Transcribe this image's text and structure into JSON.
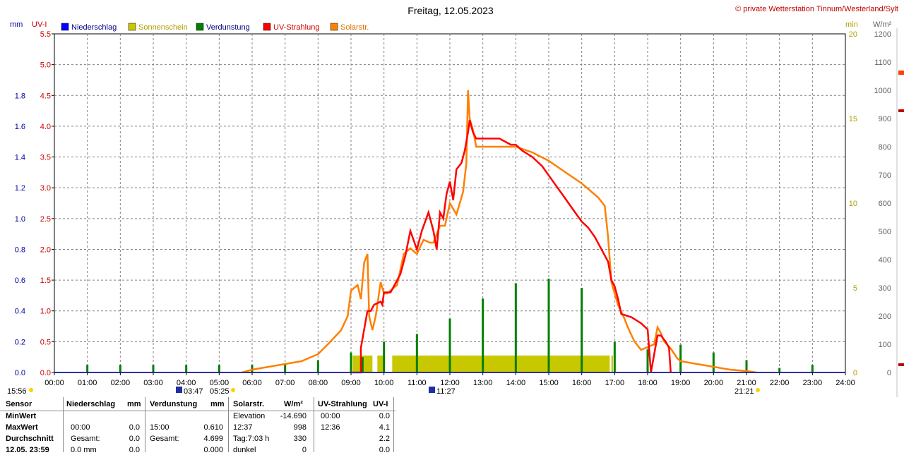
{
  "chart_data": {
    "type": "line",
    "title": "Freitag, 12.05.2023",
    "copyright": "© private Wetterstation Tinnum/Westerland/Sylt",
    "x_ticks": [
      "00:00",
      "01:00",
      "02:00",
      "03:00",
      "04:00",
      "05:00",
      "06:00",
      "07:00",
      "08:00",
      "09:00",
      "10:00",
      "11:00",
      "12:00",
      "13:00",
      "14:00",
      "15:00",
      "16:00",
      "17:00",
      "18:00",
      "19:00",
      "20:00",
      "21:00",
      "22:00",
      "23:00",
      "24:00"
    ],
    "xlim": [
      0,
      24
    ],
    "axes": {
      "mm": {
        "label": "mm",
        "ylim": [
          0,
          2.2
        ],
        "ticks": [
          "0.0",
          "0.2",
          "0.4",
          "0.6",
          "0.8",
          "1.0",
          "1.2",
          "1.4",
          "1.6",
          "1.8"
        ],
        "color": "#0000a0"
      },
      "uvi": {
        "label": "UV-I",
        "ylim": [
          0,
          5.5
        ],
        "ticks": [
          "0.0",
          "0.5",
          "1.0",
          "1.5",
          "2.0",
          "2.5",
          "3.0",
          "3.5",
          "4.0",
          "4.5",
          "5.0",
          "5.5"
        ],
        "color": "#d00000"
      },
      "min": {
        "label": "min",
        "ylim": [
          0,
          20
        ],
        "ticks": [
          "0",
          "5",
          "10",
          "15",
          "20"
        ],
        "color": "#b0a000"
      },
      "wm2": {
        "label": "W/m²",
        "ylim": [
          0,
          1200
        ],
        "ticks": [
          "0",
          "100",
          "200",
          "300",
          "400",
          "500",
          "600",
          "700",
          "800",
          "900",
          "1000",
          "1100",
          "1200"
        ],
        "color": "#606060"
      }
    },
    "legend": [
      {
        "name": "Niederschlag",
        "color": "#0000ff",
        "text_color": "#000080"
      },
      {
        "name": "Sonnenschein",
        "color": "#c8c800",
        "text_color": "#b0a000"
      },
      {
        "name": "Verdunstung",
        "color": "#008000",
        "text_color": "#000080"
      },
      {
        "name": "UV-Strahlung",
        "color": "#ff0000",
        "text_color": "#d00000"
      },
      {
        "name": "Solarstr.",
        "color": "#ff8000",
        "text_color": "#e07000"
      }
    ],
    "sunshine_blocks": [
      [
        9.05,
        9.65
      ],
      [
        9.8,
        9.98
      ],
      [
        10.25,
        16.85
      ],
      [
        16.9,
        16.95
      ]
    ],
    "sunshine_level_min": 1,
    "evaporation_spikes": [
      [
        1,
        0.05
      ],
      [
        2,
        0.05
      ],
      [
        3,
        0.05
      ],
      [
        4,
        0.05
      ],
      [
        5,
        0.05
      ],
      [
        6,
        0.05
      ],
      [
        7,
        0.05
      ],
      [
        8,
        0.08
      ],
      [
        9,
        0.13
      ],
      [
        9.35,
        0.1
      ],
      [
        10,
        0.2
      ],
      [
        11,
        0.25
      ],
      [
        12,
        0.35
      ],
      [
        13,
        0.48
      ],
      [
        14,
        0.58
      ],
      [
        15,
        0.61
      ],
      [
        16,
        0.55
      ],
      [
        17,
        0.2
      ],
      [
        18,
        0.15
      ],
      [
        19,
        0.18
      ],
      [
        20,
        0.13
      ],
      [
        21,
        0.08
      ],
      [
        22,
        0.03
      ],
      [
        23,
        0.05
      ]
    ],
    "solar_wm2": [
      [
        5.7,
        0
      ],
      [
        6,
        10
      ],
      [
        6.5,
        20
      ],
      [
        7,
        30
      ],
      [
        7.5,
        40
      ],
      [
        8,
        65
      ],
      [
        8.3,
        100
      ],
      [
        8.7,
        150
      ],
      [
        8.9,
        200
      ],
      [
        9,
        290
      ],
      [
        9.2,
        310
      ],
      [
        9.3,
        260
      ],
      [
        9.4,
        390
      ],
      [
        9.5,
        420
      ],
      [
        9.55,
        200
      ],
      [
        9.65,
        150
      ],
      [
        9.75,
        200
      ],
      [
        9.9,
        320
      ],
      [
        10,
        280
      ],
      [
        10.1,
        280
      ],
      [
        10.4,
        310
      ],
      [
        10.6,
        420
      ],
      [
        10.8,
        440
      ],
      [
        11,
        420
      ],
      [
        11.2,
        470
      ],
      [
        11.4,
        460
      ],
      [
        11.5,
        460
      ],
      [
        11.7,
        520
      ],
      [
        11.85,
        520
      ],
      [
        12,
        600
      ],
      [
        12.2,
        560
      ],
      [
        12.4,
        640
      ],
      [
        12.5,
        740
      ],
      [
        12.55,
        1000
      ],
      [
        12.6,
        900
      ],
      [
        12.7,
        860
      ],
      [
        12.8,
        800
      ],
      [
        13,
        800
      ],
      [
        13.5,
        800
      ],
      [
        14,
        800
      ],
      [
        14.5,
        780
      ],
      [
        15,
        750
      ],
      [
        15.5,
        710
      ],
      [
        16,
        670
      ],
      [
        16.5,
        620
      ],
      [
        16.7,
        590
      ],
      [
        16.8,
        480
      ],
      [
        16.9,
        320
      ],
      [
        17,
        280
      ],
      [
        17.1,
        240
      ],
      [
        17.3,
        190
      ],
      [
        17.4,
        160
      ],
      [
        17.6,
        110
      ],
      [
        17.8,
        80
      ],
      [
        18,
        90
      ],
      [
        18.2,
        100
      ],
      [
        18.3,
        160
      ],
      [
        18.4,
        140
      ],
      [
        18.5,
        110
      ],
      [
        18.7,
        85
      ],
      [
        18.9,
        50
      ],
      [
        19,
        40
      ],
      [
        19.5,
        30
      ],
      [
        20,
        20
      ],
      [
        20.5,
        10
      ],
      [
        21,
        5
      ],
      [
        21.3,
        0
      ]
    ],
    "uv_index": [
      [
        9,
        0
      ],
      [
        9.3,
        0
      ],
      [
        9.3,
        0.4
      ],
      [
        9.5,
        1.0
      ],
      [
        9.6,
        1.0
      ],
      [
        9.7,
        1.1
      ],
      [
        9.9,
        1.15
      ],
      [
        9.95,
        1.1
      ],
      [
        10,
        1.3
      ],
      [
        10.2,
        1.3
      ],
      [
        10.3,
        1.4
      ],
      [
        10.5,
        1.6
      ],
      [
        10.65,
        1.9
      ],
      [
        10.8,
        2.3
      ],
      [
        11,
        2.0
      ],
      [
        11.15,
        2.3
      ],
      [
        11.35,
        2.6
      ],
      [
        11.5,
        2.3
      ],
      [
        11.6,
        2.0
      ],
      [
        11.7,
        2.6
      ],
      [
        11.8,
        2.5
      ],
      [
        11.9,
        2.9
      ],
      [
        12,
        3.1
      ],
      [
        12.1,
        2.8
      ],
      [
        12.2,
        3.3
      ],
      [
        12.35,
        3.4
      ],
      [
        12.45,
        3.6
      ],
      [
        12.55,
        3.9
      ],
      [
        12.6,
        4.1
      ],
      [
        12.7,
        3.9
      ],
      [
        12.8,
        3.8
      ],
      [
        13,
        3.8
      ],
      [
        13.5,
        3.8
      ],
      [
        13.85,
        3.7
      ],
      [
        14,
        3.7
      ],
      [
        14.2,
        3.6
      ],
      [
        14.5,
        3.5
      ],
      [
        14.8,
        3.35
      ],
      [
        15,
        3.2
      ],
      [
        15.2,
        3.05
      ],
      [
        15.4,
        2.9
      ],
      [
        15.6,
        2.75
      ],
      [
        15.8,
        2.6
      ],
      [
        16,
        2.45
      ],
      [
        16.2,
        2.35
      ],
      [
        16.4,
        2.2
      ],
      [
        16.6,
        2.0
      ],
      [
        16.8,
        1.8
      ],
      [
        16.9,
        1.5
      ],
      [
        17,
        1.4
      ],
      [
        17.1,
        1.2
      ],
      [
        17.2,
        0.95
      ],
      [
        17.5,
        0.9
      ],
      [
        17.8,
        0.8
      ],
      [
        18,
        0.7
      ],
      [
        18.1,
        0
      ],
      [
        18.3,
        0.6
      ],
      [
        18.4,
        0.6
      ],
      [
        18.55,
        0.5
      ],
      [
        18.65,
        0.4
      ],
      [
        18.7,
        0
      ]
    ]
  },
  "sun_markers": {
    "left_time": "15:56",
    "sunrise_twilight": "03:47",
    "sunrise": "05:25",
    "noon": "11:27",
    "sunset": "21:21"
  },
  "table": {
    "headers": {
      "sensor": "Sensor",
      "niederschlag": "Niederschlag",
      "ns_unit": "mm",
      "verdunstung": "Verdunstung",
      "vd_unit": "mm",
      "solar": "Solarstr.",
      "solar_unit": "W/m²",
      "uv": "UV-Strahlung",
      "uv_unit": "UV-I"
    },
    "rows": [
      {
        "label": "MinWert",
        "ns_time": "",
        "ns_val": "",
        "vd_time": "",
        "vd_val": "",
        "so_key": "Elevation",
        "so_val": "-14.690",
        "uv_time": "00:00",
        "uv_val": "0.0"
      },
      {
        "label": "MaxWert",
        "ns_time": "00:00",
        "ns_val": "0.0",
        "vd_time": "15:00",
        "vd_val": "0.610",
        "so_key": "12:37",
        "so_val": "998",
        "uv_time": "12:36",
        "uv_val": "4.1"
      },
      {
        "label": "Durchschnitt",
        "ns_time": "Gesamt:",
        "ns_val": "0.0",
        "vd_time": "Gesamt:",
        "vd_val": "4.699",
        "so_key": "Tag:7:03 h",
        "so_val": "330",
        "uv_time": "",
        "uv_val": "2.2"
      },
      {
        "label": "12.05. 23:59",
        "ns_time": "0.0 mm",
        "ns_val": "0.0",
        "vd_time": "",
        "vd_val": "0.000",
        "so_key": "dunkel",
        "so_val": "0",
        "uv_time": "",
        "uv_val": "0.0"
      }
    ]
  }
}
